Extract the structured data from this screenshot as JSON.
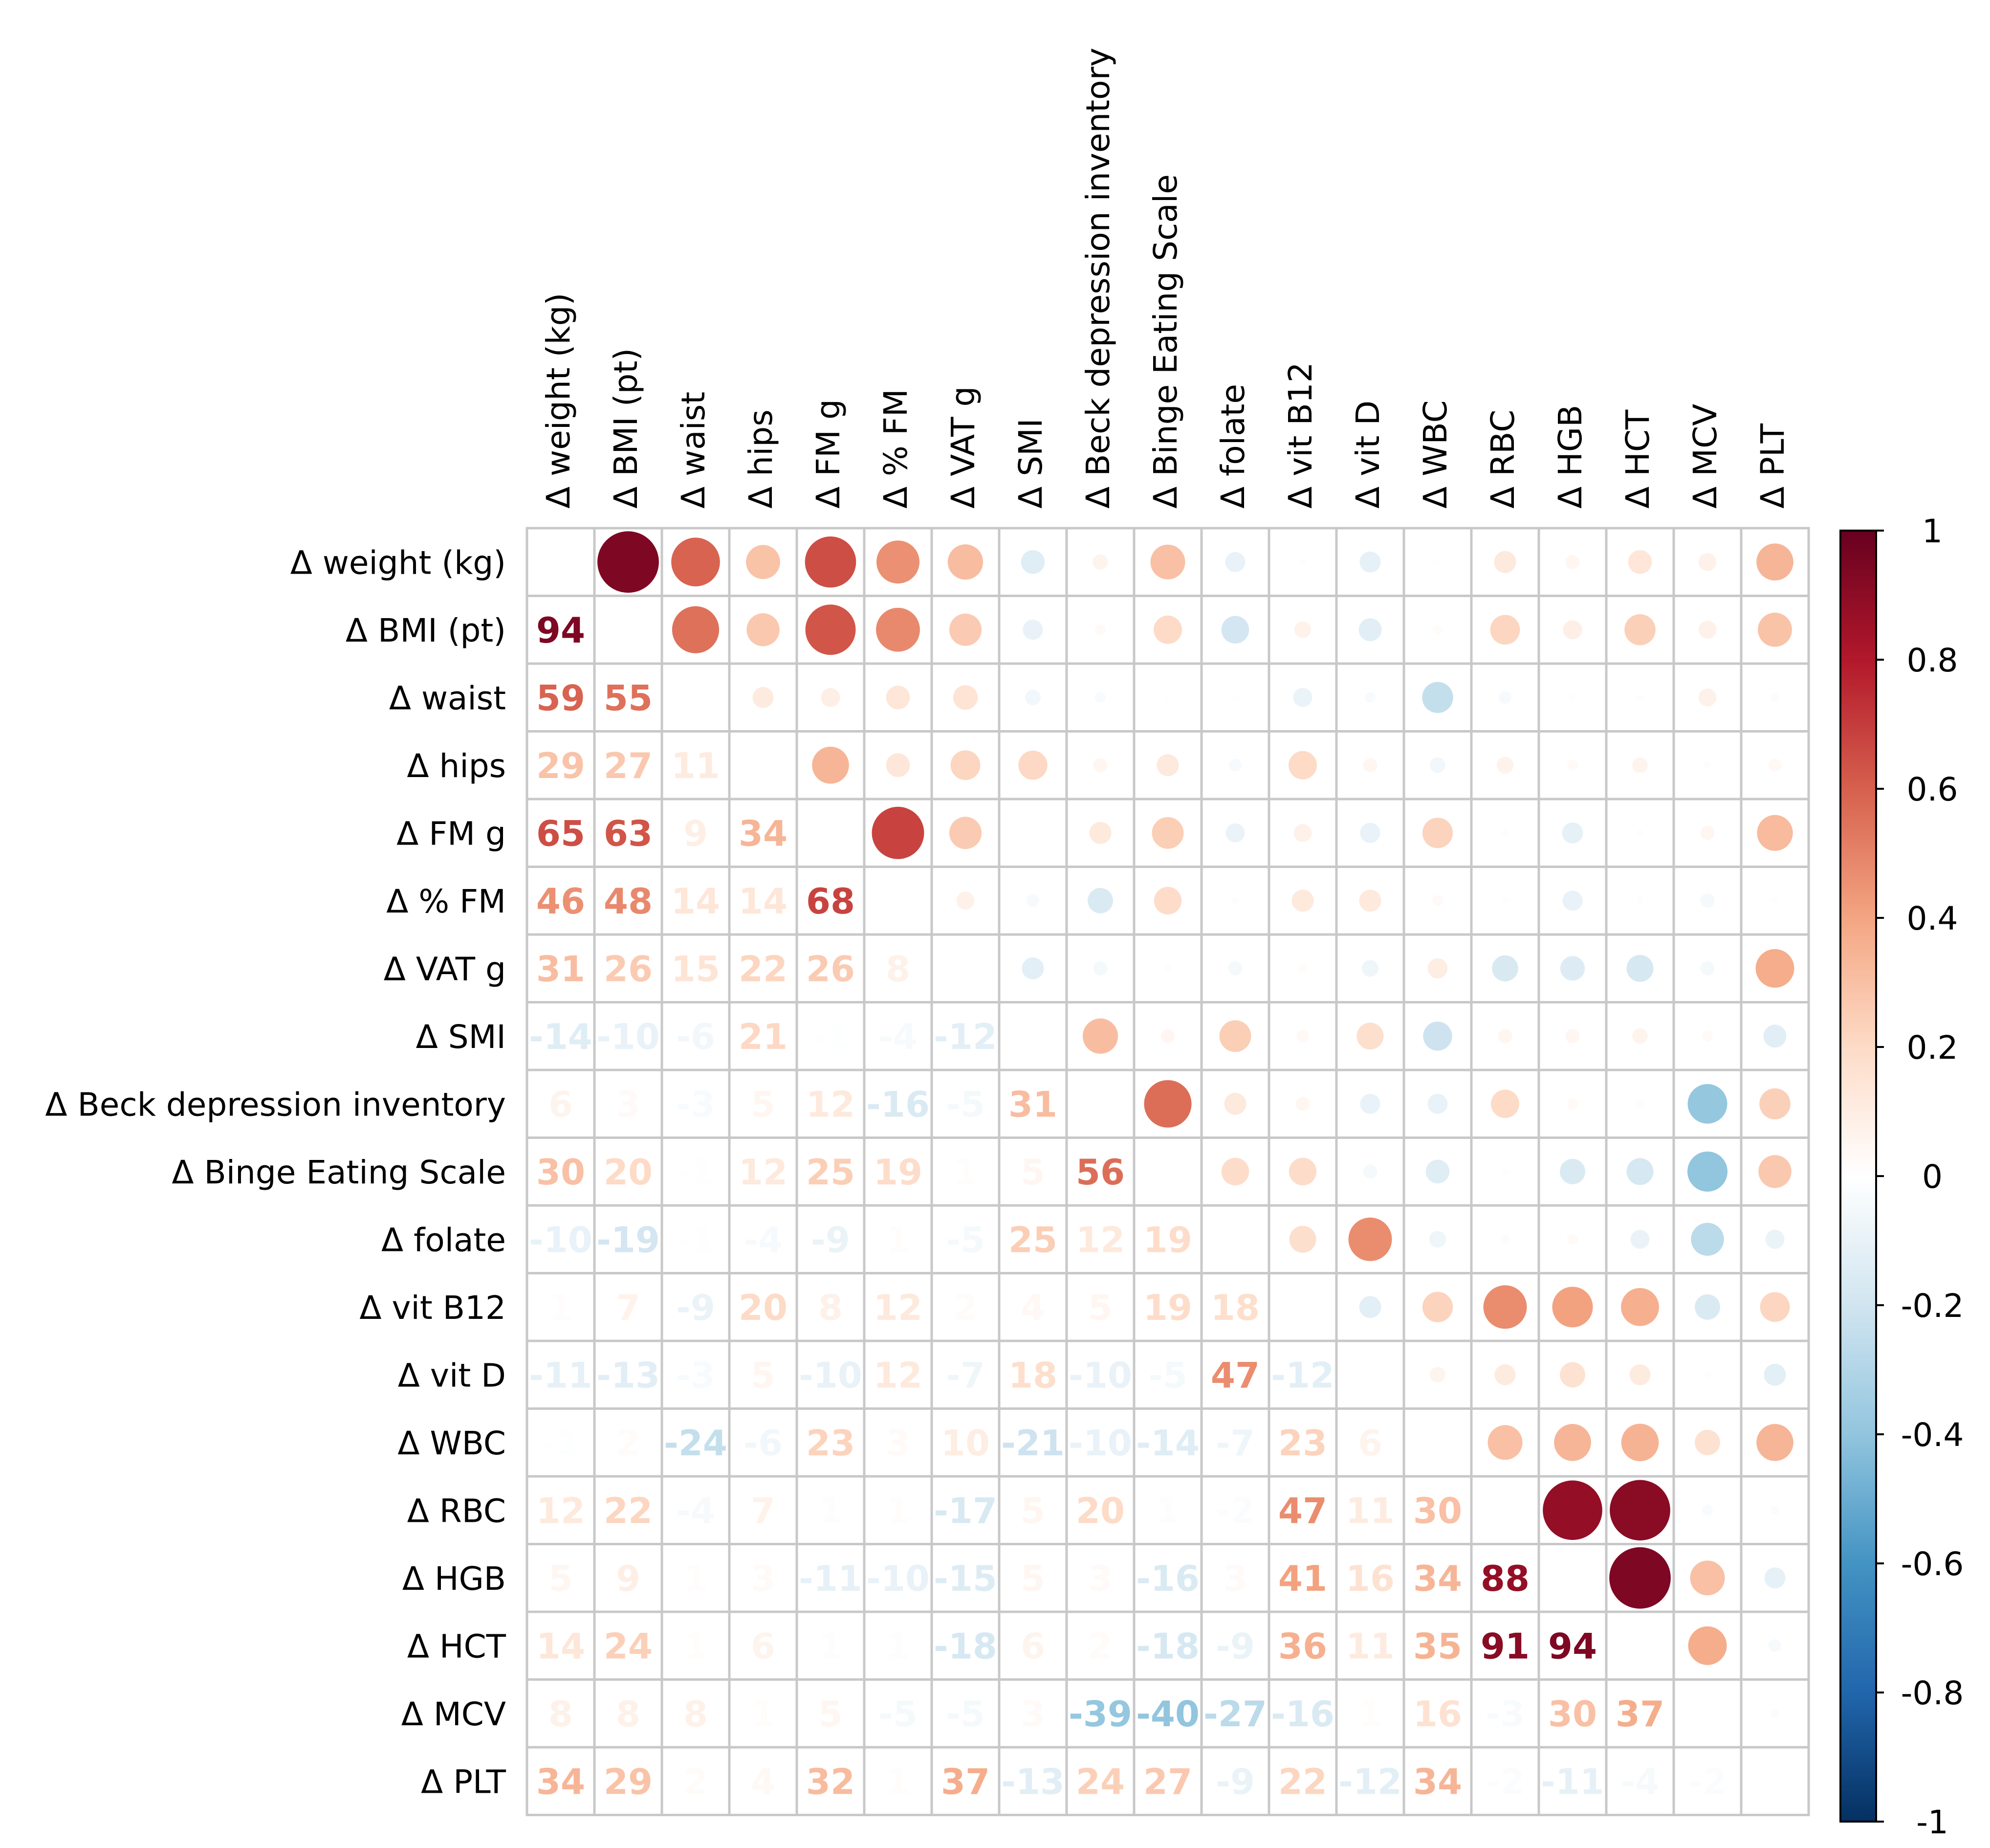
{
  "chart_data": {
    "type": "heatmap",
    "style": "mixed correlation matrix (numbers lower triangle, circles upper triangle)",
    "title": "",
    "variables": [
      "Δ weight (kg)",
      "Δ BMI (pt)",
      "Δ waist",
      "Δ hips",
      "Δ FM g",
      "Δ % FM",
      "Δ VAT g",
      "Δ SMI",
      "Δ Beck depression inventory",
      "Δ Binge Eating Scale",
      "Δ folate",
      "Δ vit B12",
      "Δ vit D",
      "Δ WBC",
      "Δ RBC",
      "Δ HGB",
      "Δ HCT",
      "Δ MCV",
      "Δ PLT"
    ],
    "value_scale": "correlation x 100",
    "lower_triangle": [
      [],
      [
        94
      ],
      [
        59,
        55
      ],
      [
        29,
        27,
        11
      ],
      [
        65,
        63,
        9,
        34
      ],
      [
        46,
        48,
        14,
        14,
        68
      ],
      [
        31,
        26,
        15,
        22,
        26,
        8
      ],
      [
        -14,
        -10,
        -6,
        21,
        -1,
        -4,
        -12
      ],
      [
        6,
        3,
        -3,
        5,
        12,
        -16,
        -5,
        31
      ],
      [
        30,
        20,
        -1,
        12,
        25,
        19,
        1,
        5,
        56
      ],
      [
        -10,
        -19,
        -1,
        -4,
        -9,
        1,
        -5,
        25,
        12,
        19
      ],
      [
        1,
        7,
        -9,
        20,
        8,
        12,
        2,
        4,
        5,
        19,
        18
      ],
      [
        -11,
        -13,
        -3,
        5,
        -10,
        12,
        -7,
        18,
        -10,
        -5,
        47,
        -12
      ],
      [
        -1,
        2,
        -24,
        -6,
        23,
        3,
        10,
        -21,
        -10,
        -14,
        -7,
        23,
        6
      ],
      [
        12,
        22,
        -4,
        7,
        1,
        1,
        -17,
        5,
        20,
        1,
        -2,
        47,
        11,
        30
      ],
      [
        5,
        9,
        1,
        3,
        -11,
        -10,
        -15,
        5,
        3,
        -16,
        3,
        41,
        16,
        34,
        88
      ],
      [
        14,
        24,
        1,
        6,
        1,
        1,
        -18,
        6,
        2,
        -18,
        -9,
        36,
        11,
        35,
        91,
        94
      ],
      [
        8,
        8,
        8,
        1,
        5,
        -5,
        -5,
        3,
        -39,
        -40,
        -27,
        -16,
        1,
        16,
        -3,
        30,
        37
      ],
      [
        34,
        29,
        2,
        4,
        32,
        1,
        37,
        -13,
        24,
        27,
        -9,
        22,
        -12,
        34,
        -2,
        -11,
        -4,
        -2
      ]
    ],
    "upper_triangle": [
      [
        94,
        59,
        29,
        65,
        46,
        31,
        -14,
        6,
        30,
        -10,
        1,
        -11,
        -1,
        12,
        5,
        14,
        8,
        34
      ],
      [
        55,
        27,
        63,
        48,
        26,
        -10,
        3,
        20,
        -19,
        7,
        -13,
        2,
        22,
        9,
        24,
        8,
        29
      ],
      [
        11,
        9,
        14,
        15,
        -6,
        -3,
        -1,
        -1,
        -9,
        -3,
        -24,
        -4,
        1,
        1,
        8,
        2
      ],
      [
        34,
        14,
        22,
        21,
        5,
        12,
        -4,
        20,
        5,
        -6,
        7,
        3,
        6,
        1,
        4
      ],
      [
        68,
        26,
        -1,
        12,
        25,
        -9,
        8,
        -10,
        23,
        1,
        -11,
        1,
        5,
        32
      ],
      [
        8,
        -4,
        -16,
        19,
        1,
        12,
        12,
        3,
        1,
        -10,
        1,
        -5,
        1
      ],
      [
        -12,
        -5,
        1,
        -5,
        2,
        -7,
        10,
        -17,
        -15,
        -18,
        -5,
        37
      ],
      [
        31,
        5,
        25,
        4,
        18,
        -21,
        5,
        5,
        6,
        3,
        -13
      ],
      [
        56,
        12,
        5,
        -10,
        -10,
        20,
        3,
        2,
        -39,
        24
      ],
      [
        19,
        19,
        -5,
        -14,
        1,
        -16,
        -18,
        -40,
        27
      ],
      [
        18,
        47,
        -7,
        -2,
        3,
        -9,
        -27,
        -9
      ],
      [
        -12,
        23,
        47,
        41,
        36,
        -16,
        22
      ],
      [
        6,
        11,
        16,
        11,
        1,
        -12
      ],
      [
        30,
        34,
        35,
        16,
        34
      ],
      [
        88,
        91,
        -3,
        -2
      ],
      [
        94,
        30,
        -11
      ],
      [
        37,
        -4
      ],
      [
        -2
      ],
      []
    ],
    "colorbar": {
      "ticks": [
        "1",
        "0.8",
        "0.6",
        "0.4",
        "0.2",
        "0",
        "-0.2",
        "-0.4",
        "-0.6",
        "-0.8",
        "-1"
      ],
      "range": [
        -1,
        1
      ],
      "colors": [
        "#67001f",
        "#b2182b",
        "#d6604d",
        "#f4a582",
        "#fddbc7",
        "#ffffff",
        "#d1e5f0",
        "#92c5de",
        "#4393c3",
        "#2166ac",
        "#053061"
      ]
    }
  }
}
